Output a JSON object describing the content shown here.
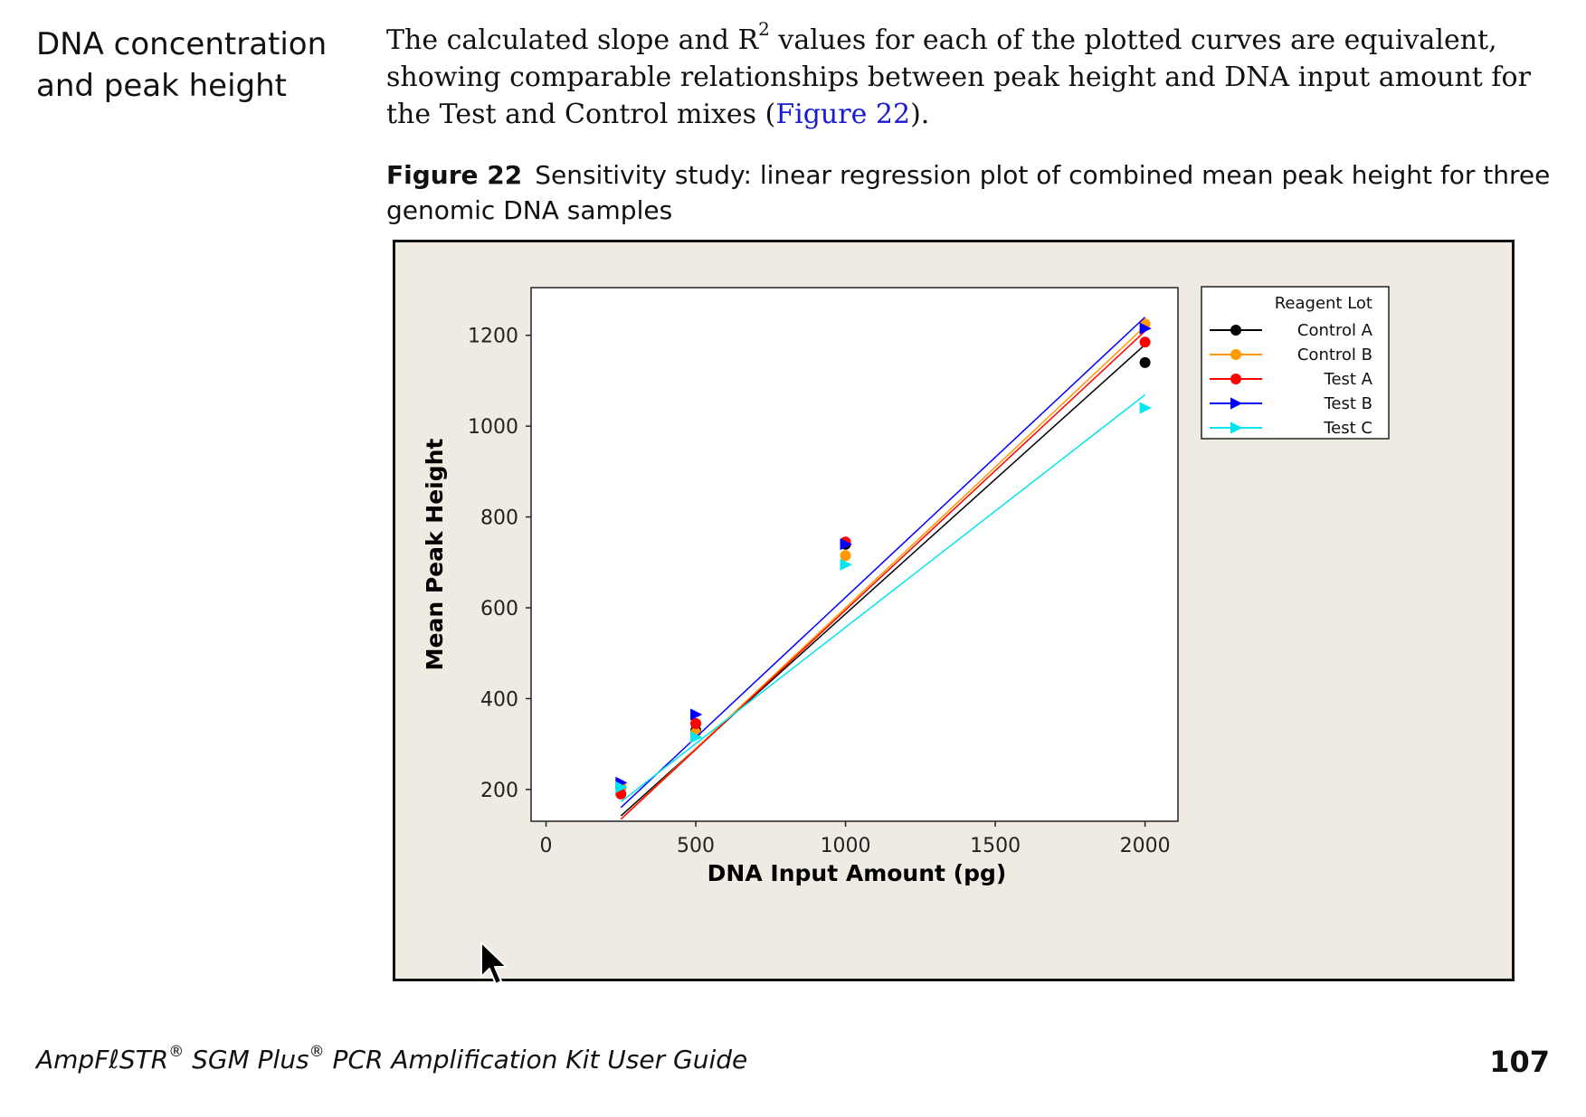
{
  "section": {
    "heading_line1": "DNA concentration",
    "heading_line2": "and peak height"
  },
  "intro": {
    "part1": "The calculated slope and R",
    "superscript": "2",
    "part2": " values for each of the plotted curves are equivalent, showing comparable relationships between peak height and DNA input amount for the Test and Control mixes (",
    "xref": "Figure 22",
    "part3": ")."
  },
  "figure": {
    "label": "Figure 22",
    "caption": "Sensitivity study: linear regression plot of combined mean peak height for three genomic DNA samples"
  },
  "chart_data": {
    "type": "scatter",
    "title": "",
    "xlabel": "DNA Input Amount (pg)",
    "ylabel": "Mean Peak Height",
    "xlim": [
      -50,
      2110
    ],
    "ylim": [
      130,
      1305
    ],
    "xticks": [
      0,
      500,
      1000,
      1500,
      2000
    ],
    "yticks": [
      200,
      400,
      600,
      800,
      1000,
      1200
    ],
    "grid": false,
    "legend_title": "Reagent Lot",
    "legend_position": "right",
    "x": [
      250,
      500,
      1000,
      2000
    ],
    "series": [
      {
        "name": "Control A",
        "color": "#000000",
        "marker": "circle",
        "values": [
          205,
          330,
          740,
          1140
        ],
        "fit": [
          -6.5,
          0.593
        ]
      },
      {
        "name": "Control B",
        "color": "#ff9900",
        "marker": "circle",
        "values": [
          205,
          325,
          715,
          1225
        ],
        "fit": [
          -20,
          0.62
        ]
      },
      {
        "name": "Test A",
        "color": "#ff0000",
        "marker": "circle",
        "values": [
          190,
          345,
          745,
          1185
        ],
        "fit": [
          -19,
          0.614
        ]
      },
      {
        "name": "Test B",
        "color": "#0000ff",
        "marker": "triangle-right",
        "values": [
          215,
          365,
          740,
          1215
        ],
        "fit": [
          6,
          0.617
        ]
      },
      {
        "name": "Test C",
        "color": "#00e5ee",
        "marker": "triangle-right",
        "values": [
          205,
          315,
          695,
          1040
        ],
        "fit": [
          45,
          0.512
        ]
      }
    ]
  },
  "footer": {
    "title_pre": "AmpFℓSTR",
    "reg1": "®",
    "title_mid": " SGM Plus",
    "reg2": "®",
    "title_post": " PCR Amplification Kit User Guide",
    "page_number": "107"
  }
}
